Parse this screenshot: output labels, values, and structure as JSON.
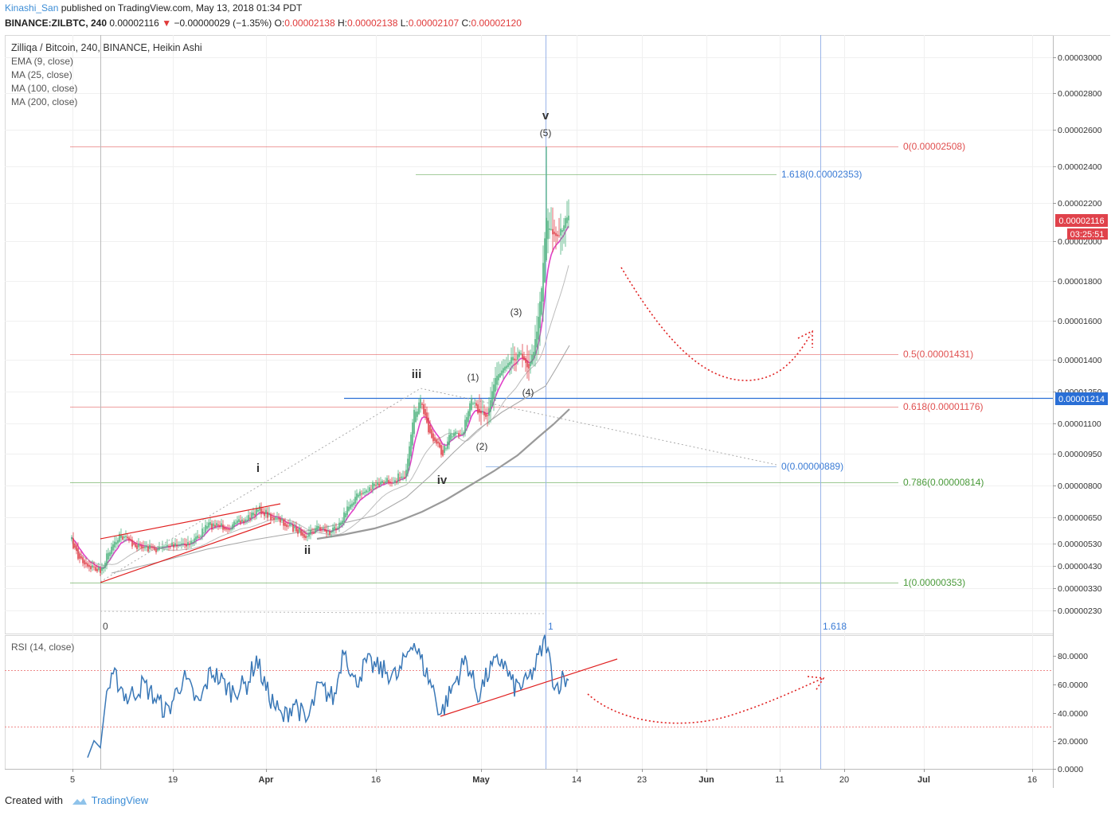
{
  "header": {
    "user": "Kinashi_San",
    "published": " published on TradingView.com, May 13, 2018 01:34 PDT",
    "symbol": "BINANCE:ZILBTC, 240",
    "last": " 0.00002116 ",
    "change": "−0.00000029 (−1.35%)",
    "o_label": " O:",
    "o": "0.00002138",
    "h_label": " H:",
    "h": "0.00002138",
    "l_label": " L:",
    "l": "0.00002107",
    "c_label": " C:",
    "c": "0.00002120"
  },
  "legend": {
    "title": "Zilliqa / Bitcoin, 240, BINANCE, Heikin Ashi",
    "ind1": "EMA (9, close)",
    "ind2": "MA (25, close)",
    "ind3": "MA (100, close)",
    "ind4": "MA (200, close)"
  },
  "rsi_legend": "RSI (14, close)",
  "footer": {
    "created": "Created with",
    "brand": "TradingView"
  },
  "colors": {
    "bull": "#4fb37e",
    "bear": "#e0424b",
    "ema": "#e040c8",
    "rsi": "#3a78b7",
    "fib_red": "#e05050",
    "fib_green": "#4a9a3a",
    "fib_blue": "#3a7bd5",
    "trend": "#e02020"
  },
  "chart_data": {
    "type": "candlestick",
    "title": "Zilliqa / Bitcoin, 240, BINANCE, Heikin Ashi",
    "last_price": "0.00002116",
    "countdown": "03:25:51",
    "horizontal_line_price": "0.00001214",
    "y_ticks": [
      "0.00003000",
      "0.00002800",
      "0.00002600",
      "0.00002400",
      "0.00002200",
      "0.00002000",
      "0.00001800",
      "0.00001600",
      "0.00001400",
      "0.00001250",
      "0.00001100",
      "0.00000950",
      "0.00000800",
      "0.00000650",
      "0.00000530",
      "0.00000430",
      "0.00000330",
      "0.00000230"
    ],
    "x_ticks": [
      "5",
      "19",
      "Apr",
      "16",
      "May",
      "14",
      "23",
      "Jun",
      "11",
      "20",
      "Jul",
      "16"
    ],
    "fib_retracement": [
      {
        "label": "0(0.00002508)",
        "color": "red"
      },
      {
        "label": "0.5(0.00001431)",
        "color": "red"
      },
      {
        "label": "0.618(0.00001176)",
        "color": "red"
      },
      {
        "label": "0.786(0.00000814)",
        "color": "green"
      },
      {
        "label": "1(0.00000353)",
        "color": "green"
      }
    ],
    "fib_extension": [
      {
        "label": "1.618(0.00002353)"
      },
      {
        "label": "0(0.00000889)"
      }
    ],
    "fib_time_labels": [
      "0",
      "1",
      "1.618"
    ],
    "wave_labels": [
      "i",
      "ii",
      "iii",
      "iv",
      "v",
      "(1)",
      "(2)",
      "(3)",
      "(4)",
      "(5)"
    ],
    "rsi": {
      "y_ticks": [
        "80.0000",
        "60.0000",
        "40.0000",
        "20.0000",
        "0.0000"
      ],
      "bands": [
        70,
        30
      ]
    }
  }
}
